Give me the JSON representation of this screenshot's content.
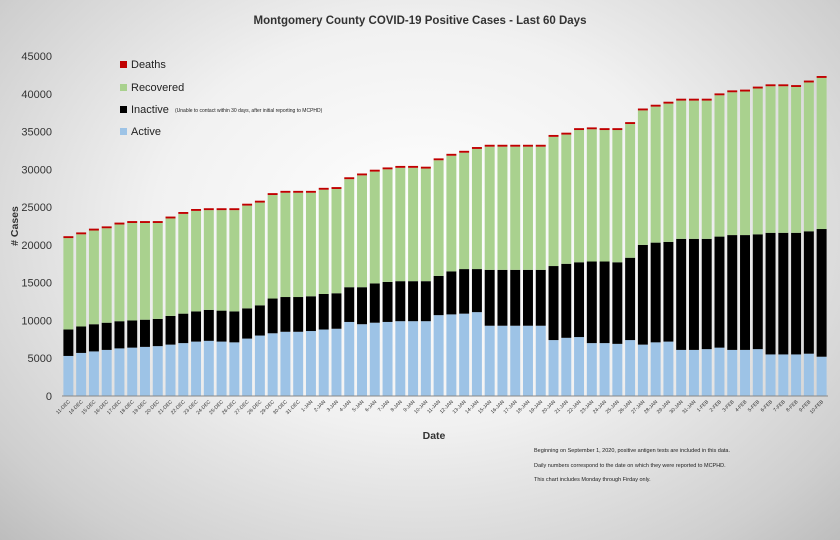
{
  "chart_data": {
    "type": "bar",
    "stacked": true,
    "title": "Montgomery County COVID-19 Positive Cases  - Last 60 Days",
    "xlabel": "Date",
    "ylabel": "# Cases",
    "ylim": [
      0,
      45000
    ],
    "yticks": [
      "0",
      "5000",
      "10000",
      "15000",
      "20000",
      "25000",
      "30000",
      "35000",
      "40000",
      "45000"
    ],
    "grid": false,
    "legend_position": "top-left",
    "categories": [
      "11-DEC",
      "14-DEC",
      "15-DEC",
      "16-DEC",
      "17-DEC",
      "18-DEC",
      "19-DEC",
      "20-DEC",
      "21-DEC",
      "22-DEC",
      "23-DEC",
      "24-DEC",
      "25-DEC",
      "26-DEC",
      "27-DEC",
      "28-DEC",
      "29-DEC",
      "30-DEC",
      "31-DEC",
      "1-JAN",
      "2-JAN",
      "3-JAN",
      "4-JAN",
      "5-JAN",
      "6-JAN",
      "7-JAN",
      "8-JAN",
      "9-JAN",
      "10-JAN",
      "11-JAN",
      "12-JAN",
      "13-JAN",
      "14-JAN",
      "15-JAN",
      "16-JAN",
      "17-JAN",
      "18-JAN",
      "19-JAN",
      "20-JAN",
      "21-JAN",
      "22-JAN",
      "23-JAN",
      "24-JAN",
      "25-JAN",
      "26-JAN",
      "27-JAN",
      "28-JAN",
      "29-JAN",
      "30-JAN",
      "31-JAN",
      "1-FEB",
      "2-FEB",
      "3-FEB",
      "4-FEB",
      "5-FEB",
      "6-FEB",
      "7-FEB",
      "8-FEB",
      "9-FEB",
      "10-FEB"
    ],
    "series": [
      {
        "name": "Active",
        "color": "#9dc3e6",
        "values": [
          5300,
          5700,
          5900,
          6100,
          6300,
          6400,
          6500,
          6600,
          6800,
          7000,
          7200,
          7300,
          7200,
          7100,
          7600,
          8000,
          8300,
          8500,
          8500,
          8600,
          8800,
          8900,
          9800,
          9500,
          9700,
          9800,
          9900,
          9900,
          9900,
          10700,
          10800,
          10900,
          11100,
          9300,
          9300,
          9300,
          9300,
          9300,
          7400,
          7700,
          7800,
          7000,
          7000,
          6900,
          7400,
          6800,
          7100,
          7200,
          6100,
          6100,
          6200,
          6400,
          6100,
          6100,
          6200,
          5500,
          5500,
          5500,
          5600,
          5200
        ]
      },
      {
        "name": "Inactive",
        "color": "#000000",
        "values": [
          3500,
          3500,
          3600,
          3600,
          3600,
          3600,
          3600,
          3600,
          3800,
          3900,
          4000,
          4100,
          4100,
          4100,
          4000,
          4000,
          4600,
          4600,
          4600,
          4600,
          4700,
          4700,
          4600,
          4900,
          5200,
          5300,
          5300,
          5300,
          5300,
          5200,
          5700,
          5900,
          5700,
          7400,
          7400,
          7400,
          7400,
          7400,
          9800,
          9800,
          9900,
          10800,
          10800,
          10800,
          10900,
          13200,
          13200,
          13200,
          14700,
          14700,
          14600,
          14700,
          15200,
          15200,
          15200,
          16100,
          16100,
          16100,
          16200,
          16900
        ]
      },
      {
        "name": "Recovered",
        "color": "#a9d18e",
        "values": [
          12100,
          12200,
          12400,
          12500,
          12800,
          12900,
          12800,
          12700,
          12900,
          13200,
          13300,
          13200,
          13300,
          13400,
          13600,
          13600,
          13700,
          13800,
          13800,
          13700,
          13800,
          13800,
          14300,
          14800,
          14800,
          14900,
          15000,
          15000,
          14900,
          15300,
          15300,
          15400,
          15900,
          16300,
          16300,
          16300,
          16300,
          16300,
          17100,
          17100,
          17500,
          17500,
          17400,
          17500,
          17700,
          17800,
          18000,
          18300,
          18300,
          18300,
          18300,
          18700,
          18900,
          19000,
          19300,
          19400,
          19400,
          19300,
          19700,
          20000
        ]
      },
      {
        "name": "Deaths",
        "color": "#c00000",
        "values": [
          250,
          250,
          250,
          250,
          250,
          250,
          250,
          250,
          250,
          250,
          250,
          250,
          250,
          250,
          250,
          250,
          250,
          250,
          250,
          250,
          250,
          250,
          250,
          250,
          250,
          250,
          250,
          250,
          250,
          250,
          250,
          250,
          250,
          250,
          250,
          250,
          250,
          250,
          250,
          250,
          250,
          250,
          250,
          250,
          250,
          250,
          250,
          250,
          250,
          250,
          250,
          250,
          250,
          250,
          250,
          250,
          250,
          250,
          250,
          250
        ]
      }
    ],
    "legend": {
      "deaths": "Deaths",
      "recovered": "Recovered",
      "inactive": "Inactive",
      "inactive_note": "(Unable to contact within 30 days, after initial reporting to MCPHD)",
      "active": "Active"
    },
    "notes": [
      "Beginning on September 1, 2020, positive antigen tests are included in this data.",
      "Daily numbers correspond to the date on which they were reported to MCPHD.",
      "This chart includes Monday through Firday only."
    ]
  }
}
